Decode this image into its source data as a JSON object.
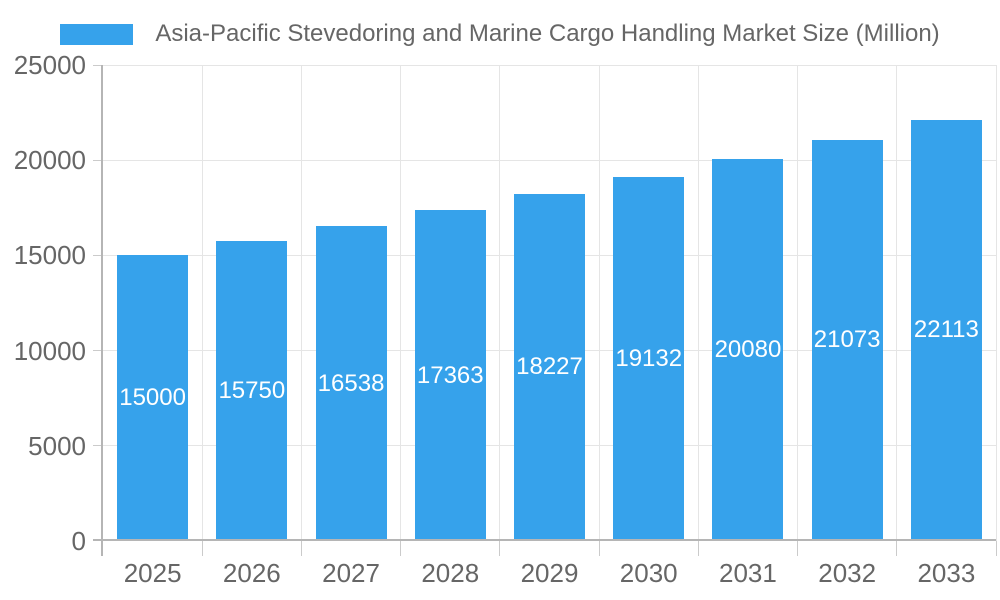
{
  "chart_data": {
    "type": "bar",
    "title": "Asia-Pacific Stevedoring and Marine Cargo Handling Market Size (Million)",
    "categories": [
      "2025",
      "2026",
      "2027",
      "2028",
      "2029",
      "2030",
      "2031",
      "2032",
      "2033"
    ],
    "values": [
      15000,
      15750,
      16538,
      17363,
      18227,
      19132,
      20080,
      21073,
      22113
    ],
    "value_labels": [
      "15000",
      "15750",
      "16538",
      "17363",
      "18227",
      "19132",
      "20080",
      "21073",
      "22113"
    ],
    "xlabel": "",
    "ylabel": "",
    "ylim": [
      0,
      25000
    ],
    "ytick_step": 5000,
    "yticks": [
      0,
      5000,
      10000,
      15000,
      20000,
      25000
    ],
    "grid": true,
    "legend_position": "top",
    "value_label_position": "inside-middle",
    "colors": {
      "bar": "#36A2EB",
      "value_label": "#FFFFFF",
      "text": "#666666",
      "gridline": "#E5E5E5",
      "axis_line": "#B5B5B5",
      "tick_mark": "#CBCBCB",
      "background": "#FFFFFF"
    }
  }
}
